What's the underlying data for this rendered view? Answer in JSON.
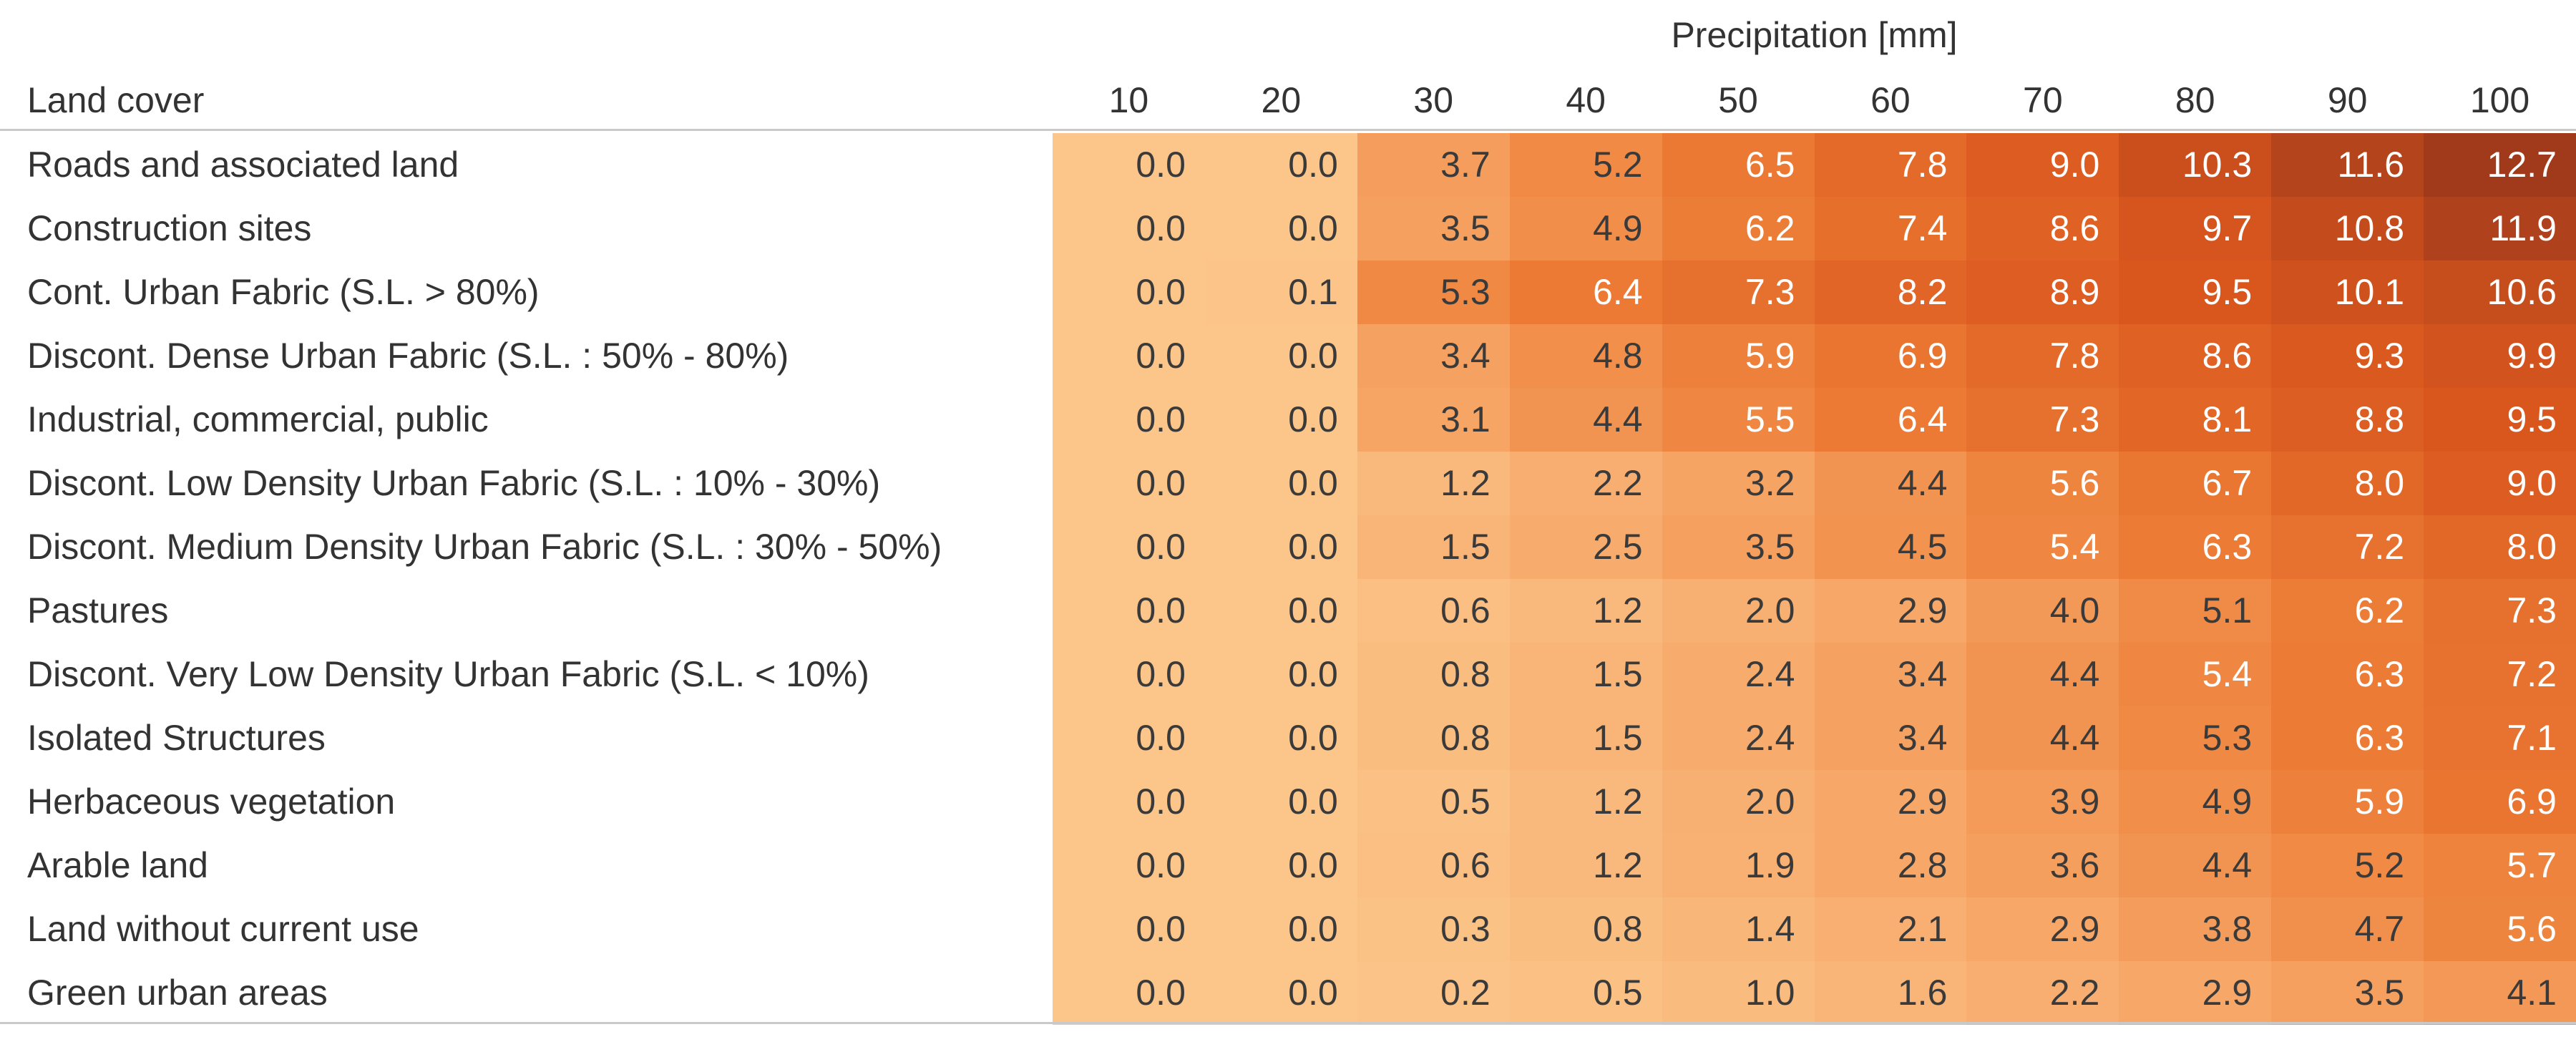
{
  "chart_data": {
    "type": "heatmap",
    "column_group_label": "Precipitation [mm]",
    "row_header_label": "Land cover",
    "columns": [
      "10",
      "20",
      "30",
      "40",
      "50",
      "60",
      "70",
      "80",
      "90",
      "100"
    ],
    "rows": [
      {
        "label": "Roads and associated land",
        "values": [
          "0.0",
          "0.0",
          "3.7",
          "5.2",
          "6.5",
          "7.8",
          "9.0",
          "10.3",
          "11.6",
          "12.7"
        ]
      },
      {
        "label": "Construction sites",
        "values": [
          "0.0",
          "0.0",
          "3.5",
          "4.9",
          "6.2",
          "7.4",
          "8.6",
          "9.7",
          "10.8",
          "11.9"
        ]
      },
      {
        "label": "Cont. Urban Fabric (S.L. > 80%)",
        "values": [
          "0.0",
          "0.1",
          "5.3",
          "6.4",
          "7.3",
          "8.2",
          "8.9",
          "9.5",
          "10.1",
          "10.6"
        ]
      },
      {
        "label": "Discont. Dense Urban Fabric (S.L. : 50% -  80%)",
        "values": [
          "0.0",
          "0.0",
          "3.4",
          "4.8",
          "5.9",
          "6.9",
          "7.8",
          "8.6",
          "9.3",
          "9.9"
        ]
      },
      {
        "label": "Industrial, commercial, public",
        "values": [
          "0.0",
          "0.0",
          "3.1",
          "4.4",
          "5.5",
          "6.4",
          "7.3",
          "8.1",
          "8.8",
          "9.5"
        ]
      },
      {
        "label": "Discont. Low Density Urban Fabric (S.L. : 10% - 30%)",
        "values": [
          "0.0",
          "0.0",
          "1.2",
          "2.2",
          "3.2",
          "4.4",
          "5.6",
          "6.7",
          "8.0",
          "9.0"
        ]
      },
      {
        "label": "Discont. Medium Density Urban Fabric (S.L. : 30% - 50%)",
        "values": [
          "0.0",
          "0.0",
          "1.5",
          "2.5",
          "3.5",
          "4.5",
          "5.4",
          "6.3",
          "7.2",
          "8.0"
        ]
      },
      {
        "label": "Pastures",
        "values": [
          "0.0",
          "0.0",
          "0.6",
          "1.2",
          "2.0",
          "2.9",
          "4.0",
          "5.1",
          "6.2",
          "7.3"
        ]
      },
      {
        "label": "Discont. Very Low Density Urban Fabric (S.L. < 10%)",
        "values": [
          "0.0",
          "0.0",
          "0.8",
          "1.5",
          "2.4",
          "3.4",
          "4.4",
          "5.4",
          "6.3",
          "7.2"
        ]
      },
      {
        "label": "Isolated Structures",
        "values": [
          "0.0",
          "0.0",
          "0.8",
          "1.5",
          "2.4",
          "3.4",
          "4.4",
          "5.3",
          "6.3",
          "7.1"
        ]
      },
      {
        "label": "Herbaceous vegetation",
        "values": [
          "0.0",
          "0.0",
          "0.5",
          "1.2",
          "2.0",
          "2.9",
          "3.9",
          "4.9",
          "5.9",
          "6.9"
        ]
      },
      {
        "label": "Arable land",
        "values": [
          "0.0",
          "0.0",
          "0.6",
          "1.2",
          "1.9",
          "2.8",
          "3.6",
          "4.4",
          "5.2",
          "5.7"
        ]
      },
      {
        "label": "Land without current use",
        "values": [
          "0.0",
          "0.0",
          "0.3",
          "0.8",
          "1.4",
          "2.1",
          "2.9",
          "3.8",
          "4.7",
          "5.6"
        ]
      },
      {
        "label": "Green urban areas",
        "values": [
          "0.0",
          "0.0",
          "0.2",
          "0.5",
          "1.0",
          "1.6",
          "2.2",
          "2.9",
          "3.5",
          "4.1"
        ]
      }
    ],
    "color_scale": {
      "min": 0,
      "max": 12.7,
      "stops": [
        "#fcc58a",
        "#f6a464",
        "#ec7b34",
        "#d9561d",
        "#a13a1b"
      ]
    },
    "grid": false,
    "legend": "none"
  }
}
